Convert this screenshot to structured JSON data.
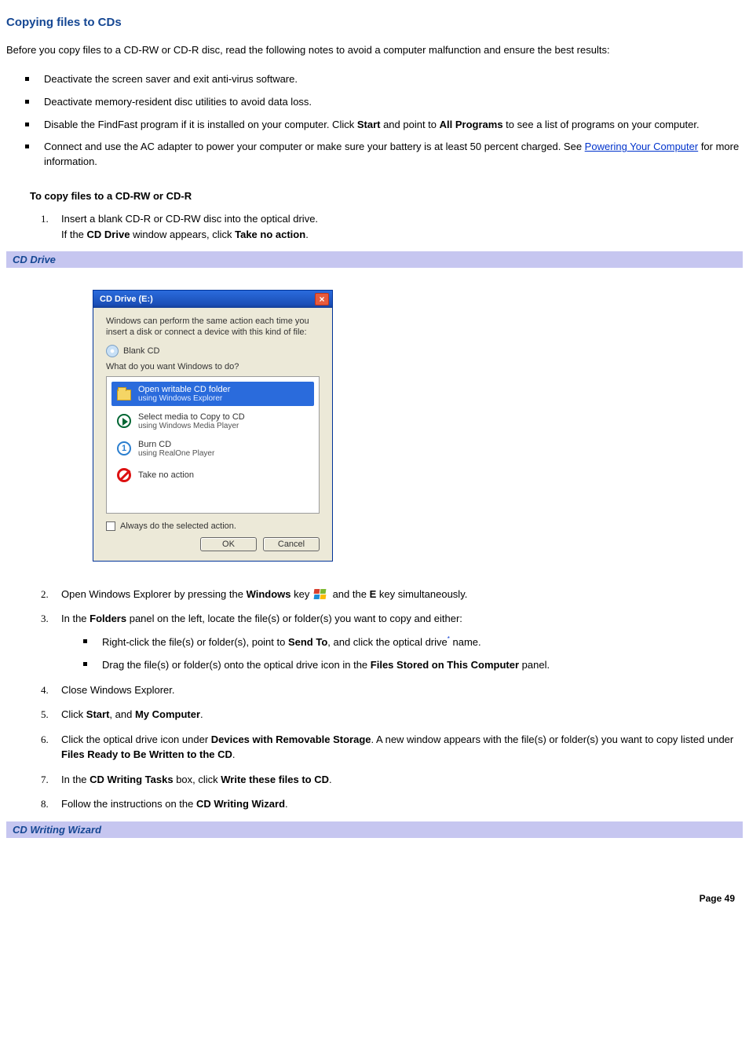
{
  "title": "Copying files to CDs",
  "intro": "Before you copy files to a CD-RW or CD-R disc, read the following notes to avoid a computer malfunction and ensure the best results:",
  "bullets": {
    "b1": "Deactivate the screen saver and exit anti-virus software.",
    "b2": "Deactivate memory-resident disc utilities to avoid data loss.",
    "b3_pre": "Disable the FindFast program if it is installed on your computer. Click ",
    "b3_bold1": "Start",
    "b3_mid": " and point to ",
    "b3_bold2": "All Programs",
    "b3_post": " to see a list of programs on your computer.",
    "b4_pre": "Connect and use the AC adapter to power your computer or make sure your battery is at least 50 percent charged. See ",
    "b4_link": "Powering Your Computer",
    "b4_post": " for more information."
  },
  "subhead": "To copy files to a CD-RW or CD-R",
  "steps": {
    "s1a": "Insert a blank CD-R or CD-RW disc into the optical drive.",
    "s1b_pre": "If the ",
    "s1b_bold1": "CD Drive",
    "s1b_mid": " window appears, click ",
    "s1b_bold2": "Take no action",
    "s1b_post": ".",
    "s2_pre": "Open Windows Explorer by pressing the ",
    "s2_bold1": "Windows",
    "s2_mid1": " key ",
    "s2_mid2": " and the ",
    "s2_bold2": "E",
    "s2_post": " key simultaneously.",
    "s3_pre": "In the ",
    "s3_bold1": "Folders",
    "s3_post": " panel on the left, locate the file(s) or folder(s) you want to copy and either:",
    "s3i1_pre": "Right-click the file(s) or folder(s), point to ",
    "s3i1_bold": "Send To",
    "s3i1_mid": ", and click the optical drive",
    "s3i1_fn": "*",
    "s3i1_post": " name.",
    "s3i2_pre": "Drag the file(s) or folder(s) onto the optical drive icon in the ",
    "s3i2_bold": "Files Stored on This Computer",
    "s3i2_post": " panel.",
    "s4": "Close Windows Explorer.",
    "s5_pre": "Click ",
    "s5_bold1": "Start",
    "s5_mid": ", and ",
    "s5_bold2": "My Computer",
    "s5_post": ".",
    "s6_pre": "Click the optical drive icon under ",
    "s6_bold1": "Devices with Removable Storage",
    "s6_mid": ". A new window appears with the file(s) or folder(s) you want to copy listed under ",
    "s6_bold2": "Files Ready to Be Written to the CD",
    "s6_post": ".",
    "s7_pre": "In the ",
    "s7_bold1": "CD Writing Tasks",
    "s7_mid": " box, click ",
    "s7_bold2": "Write these files to CD",
    "s7_post": ".",
    "s8_pre": "Follow the instructions on the ",
    "s8_bold": "CD Writing Wizard",
    "s8_post": "."
  },
  "caption1": "CD Drive",
  "caption2": "CD Writing Wizard",
  "dialog": {
    "title": "CD Drive (E:)",
    "msg": "Windows can perform the same action each time you insert a disk or connect a device with this kind of file:",
    "disc_label": "Blank CD",
    "question": "What do you want Windows to do?",
    "opt1_t1": "Open writable CD folder",
    "opt1_t2": "using Windows Explorer",
    "opt2_t1": "Select media to Copy to CD",
    "opt2_t2": "using Windows Media Player",
    "opt3_t1": "Burn CD",
    "opt3_t2": "using RealOne Player",
    "opt4_t1": "Take no action",
    "chk": "Always do the selected action.",
    "ok": "OK",
    "cancel": "Cancel"
  },
  "pagenum": "Page 49",
  "nums": {
    "n1": "1.",
    "n2": "2.",
    "n3": "3.",
    "n4": "4.",
    "n5": "5.",
    "n6": "6.",
    "n7": "7.",
    "n8": "8."
  }
}
